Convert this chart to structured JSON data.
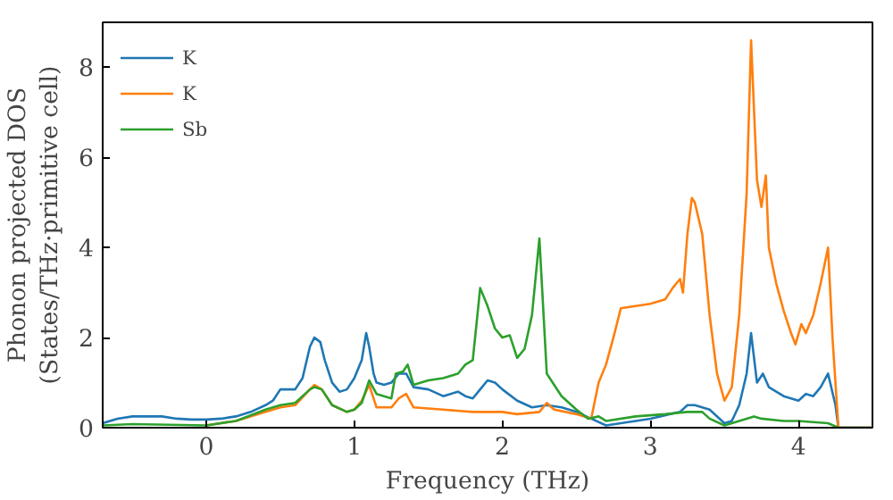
{
  "chart_data": {
    "type": "line",
    "xlabel": "Frequency (THz)",
    "ylabel": "Phonon projected DOS\n(States/THz·primitive cell)",
    "xlim": [
      -0.7,
      4.5
    ],
    "ylim": [
      0,
      9
    ],
    "xticks": [
      0,
      1,
      2,
      3,
      4
    ],
    "yticks": [
      0,
      2,
      4,
      6,
      8
    ],
    "grid": false,
    "legend": "top left",
    "series": [
      {
        "name": "K",
        "color": "#1f77b4",
        "x": [
          -0.7,
          -0.6,
          -0.5,
          -0.4,
          -0.3,
          -0.2,
          -0.1,
          0,
          0.1,
          0.2,
          0.3,
          0.4,
          0.45,
          0.5,
          0.55,
          0.6,
          0.65,
          0.7,
          0.73,
          0.77,
          0.8,
          0.85,
          0.9,
          0.95,
          1.0,
          1.05,
          1.08,
          1.1,
          1.13,
          1.15,
          1.2,
          1.25,
          1.3,
          1.35,
          1.4,
          1.5,
          1.6,
          1.65,
          1.7,
          1.75,
          1.8,
          1.85,
          1.9,
          1.95,
          2.0,
          2.1,
          2.2,
          2.3,
          2.4,
          2.5,
          2.6,
          2.7,
          2.8,
          3.0,
          3.2,
          3.25,
          3.3,
          3.4,
          3.5,
          3.55,
          3.6,
          3.65,
          3.68,
          3.72,
          3.76,
          3.8,
          3.9,
          4.0,
          4.05,
          4.1,
          4.15,
          4.2,
          4.25,
          4.27,
          4.5
        ],
        "values": [
          0.1,
          0.2,
          0.25,
          0.25,
          0.25,
          0.2,
          0.18,
          0.18,
          0.2,
          0.25,
          0.35,
          0.5,
          0.6,
          0.85,
          0.85,
          0.85,
          1.1,
          1.8,
          2.0,
          1.9,
          1.5,
          1.0,
          0.8,
          0.85,
          1.1,
          1.5,
          2.1,
          1.8,
          1.2,
          1.0,
          0.95,
          1.0,
          1.2,
          1.2,
          0.9,
          0.85,
          0.7,
          0.75,
          0.8,
          0.7,
          0.65,
          0.85,
          1.05,
          1.0,
          0.85,
          0.6,
          0.45,
          0.5,
          0.45,
          0.35,
          0.2,
          0.05,
          0.1,
          0.2,
          0.35,
          0.5,
          0.5,
          0.4,
          0.1,
          0.15,
          0.5,
          1.2,
          2.1,
          1.0,
          1.2,
          0.9,
          0.7,
          0.6,
          0.75,
          0.7,
          0.9,
          1.2,
          0.5,
          0,
          0
        ]
      },
      {
        "name": "K",
        "color": "#ff7f0e",
        "x": [
          0,
          0.2,
          0.4,
          0.5,
          0.6,
          0.7,
          0.73,
          0.78,
          0.85,
          0.95,
          1.0,
          1.05,
          1.1,
          1.15,
          1.25,
          1.3,
          1.35,
          1.4,
          1.6,
          1.8,
          2.0,
          2.1,
          2.25,
          2.3,
          2.35,
          2.5,
          2.6,
          2.65,
          2.7,
          2.75,
          2.8,
          2.9,
          3.0,
          3.1,
          3.15,
          3.2,
          3.22,
          3.25,
          3.28,
          3.3,
          3.35,
          3.4,
          3.45,
          3.5,
          3.55,
          3.6,
          3.65,
          3.68,
          3.72,
          3.75,
          3.78,
          3.8,
          3.85,
          3.9,
          3.95,
          3.98,
          4.02,
          4.05,
          4.1,
          4.15,
          4.2,
          4.23,
          4.27,
          4.5
        ],
        "values": [
          0.05,
          0.15,
          0.35,
          0.45,
          0.5,
          0.85,
          0.95,
          0.85,
          0.5,
          0.35,
          0.4,
          0.6,
          0.95,
          0.45,
          0.45,
          0.65,
          0.75,
          0.45,
          0.4,
          0.35,
          0.35,
          0.3,
          0.35,
          0.55,
          0.4,
          0.3,
          0.2,
          1.0,
          1.4,
          2.0,
          2.65,
          2.7,
          2.75,
          2.85,
          3.1,
          3.3,
          3.0,
          4.3,
          5.1,
          5.0,
          4.3,
          2.5,
          1.2,
          0.6,
          0.9,
          2.5,
          5.2,
          8.6,
          5.5,
          4.9,
          5.6,
          4.0,
          3.2,
          2.6,
          2.1,
          1.85,
          2.3,
          2.1,
          2.5,
          3.2,
          4.0,
          2.0,
          0,
          0
        ]
      },
      {
        "name": "Sb",
        "color": "#2ca02c",
        "x": [
          -0.7,
          -0.5,
          0,
          0.2,
          0.4,
          0.5,
          0.6,
          0.7,
          0.73,
          0.78,
          0.85,
          0.95,
          1.0,
          1.05,
          1.1,
          1.15,
          1.25,
          1.28,
          1.33,
          1.36,
          1.4,
          1.5,
          1.6,
          1.7,
          1.75,
          1.8,
          1.85,
          1.9,
          1.95,
          2.0,
          2.05,
          2.1,
          2.15,
          2.2,
          2.25,
          2.3,
          2.4,
          2.5,
          2.58,
          2.65,
          2.7,
          2.9,
          3.1,
          3.25,
          3.35,
          3.4,
          3.5,
          3.6,
          3.7,
          3.75,
          3.9,
          4.0,
          4.2,
          4.27,
          4.5
        ],
        "values": [
          0.05,
          0.08,
          0.05,
          0.15,
          0.4,
          0.5,
          0.55,
          0.85,
          0.9,
          0.85,
          0.5,
          0.35,
          0.4,
          0.55,
          1.05,
          0.75,
          0.65,
          1.2,
          1.25,
          1.4,
          0.95,
          1.05,
          1.1,
          1.2,
          1.4,
          1.5,
          3.1,
          2.7,
          2.2,
          2.0,
          2.05,
          1.55,
          1.75,
          2.5,
          4.2,
          1.2,
          0.7,
          0.4,
          0.2,
          0.25,
          0.15,
          0.25,
          0.3,
          0.35,
          0.35,
          0.2,
          0.05,
          0.15,
          0.25,
          0.2,
          0.15,
          0.15,
          0.1,
          0,
          0
        ]
      }
    ]
  }
}
